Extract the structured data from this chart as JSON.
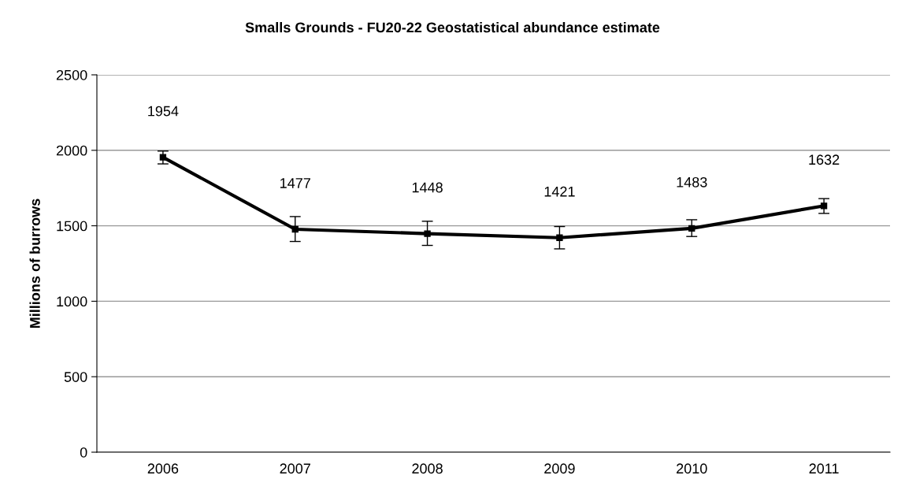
{
  "chart_data": {
    "type": "line",
    "title": "Smalls Grounds - FU20-22 Geostatistical abundance estimate",
    "ylabel": "Millions of burrows",
    "categories": [
      "2006",
      "2007",
      "2008",
      "2009",
      "2010",
      "2011"
    ],
    "series": [
      {
        "color": "#000000",
        "values": [
          1954,
          1477,
          1448,
          1421,
          1483,
          1632
        ],
        "errors": [
          [
            1910,
            1995
          ],
          [
            1396,
            1561
          ],
          [
            1370,
            1530
          ],
          [
            1347,
            1495
          ],
          [
            1429,
            1540
          ],
          [
            1582,
            1680
          ]
        ]
      }
    ],
    "ylim": [
      0,
      2500
    ],
    "yticks": [
      0,
      500,
      1000,
      1500,
      2000,
      2500
    ],
    "grid": "y",
    "data_labels": true,
    "marker": "square",
    "line_style": "solid"
  }
}
